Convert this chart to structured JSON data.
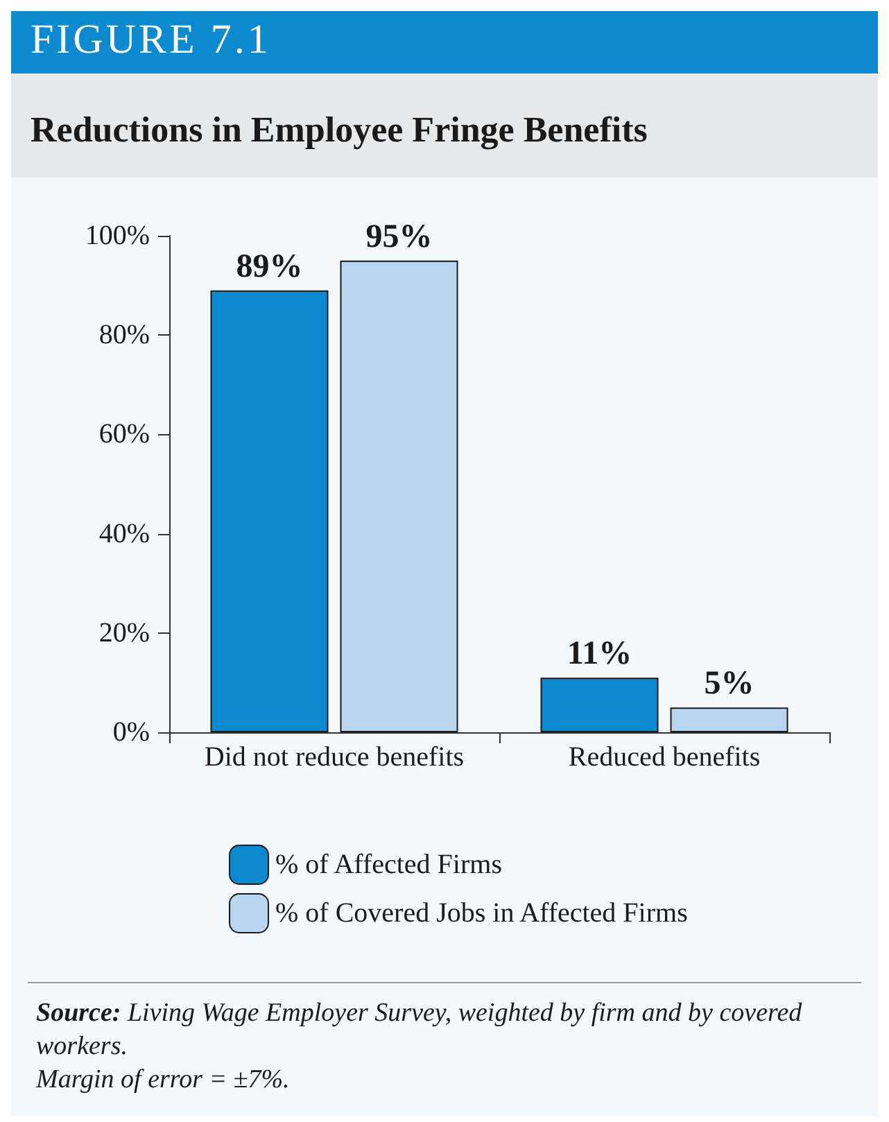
{
  "chart_data": {
    "type": "bar",
    "title": "FIGURE 7.1",
    "subtitle": "Reductions in Employee Fringe Benefits",
    "categories": [
      "Did not reduce benefits",
      "Reduced benefits"
    ],
    "series": [
      {
        "name": "% of Affected Firms",
        "color": "#0b8ad0",
        "values": [
          89,
          11
        ],
        "value_labels": [
          "89%",
          "11%"
        ]
      },
      {
        "name": "% of Covered Jobs in Affected Firms",
        "color": "#b9d5ef",
        "values": [
          95,
          5
        ],
        "value_labels": [
          "95%",
          "5%"
        ]
      }
    ],
    "ylim": [
      0,
      100
    ],
    "yticks": [
      {
        "value": 0,
        "label": "0%"
      },
      {
        "value": 20,
        "label": "20%"
      },
      {
        "value": 40,
        "label": "40%"
      },
      {
        "value": 60,
        "label": "60%"
      },
      {
        "value": 80,
        "label": "80%"
      },
      {
        "value": 100,
        "label": "100%"
      }
    ],
    "grid": false,
    "legend": "bottom",
    "annotations": [
      "Source: Living Wage Employer Survey, weighted by firm and by covered workers.",
      "Margin of error = ±7%."
    ]
  }
}
